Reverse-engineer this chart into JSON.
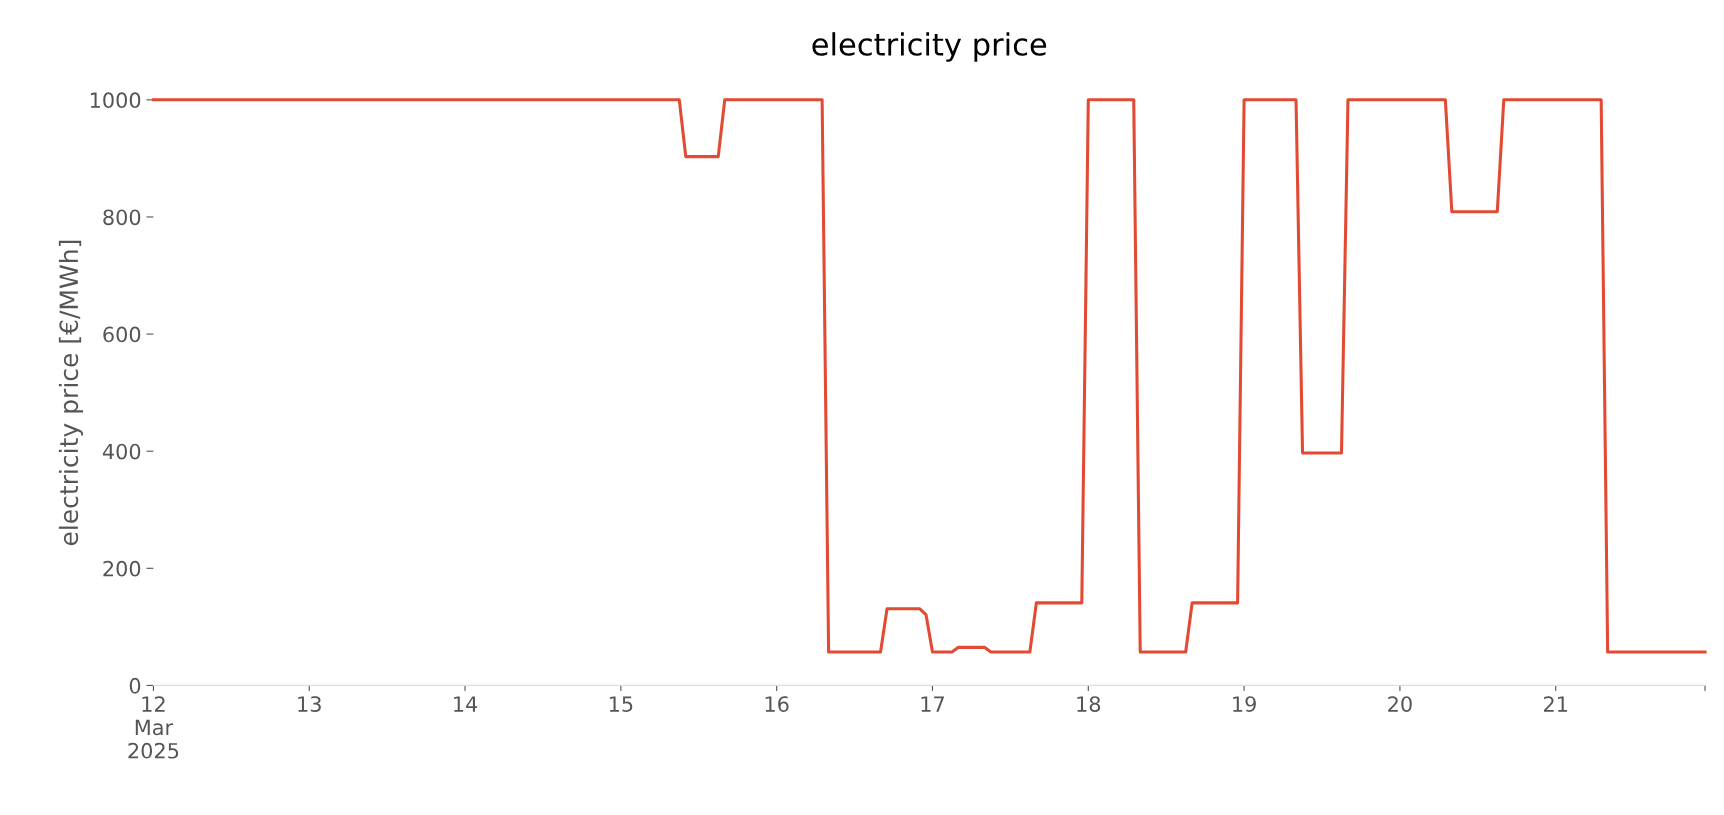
{
  "chart_data": {
    "type": "line",
    "title": "electricity price",
    "ylabel": "electricity price [€/MWh]",
    "x": [
      "2025-03-12T00:00",
      "2025-03-15T09:00",
      "2025-03-15T10:00",
      "2025-03-15T15:00",
      "2025-03-15T16:00",
      "2025-03-16T07:00",
      "2025-03-16T08:00",
      "2025-03-16T16:00",
      "2025-03-16T17:00",
      "2025-03-16T22:00",
      "2025-03-16T23:00",
      "2025-03-17T00:00",
      "2025-03-17T03:00",
      "2025-03-17T04:00",
      "2025-03-17T08:00",
      "2025-03-17T09:00",
      "2025-03-17T15:00",
      "2025-03-17T16:00",
      "2025-03-17T23:00",
      "2025-03-18T00:00",
      "2025-03-18T07:00",
      "2025-03-18T08:00",
      "2025-03-18T15:00",
      "2025-03-18T16:00",
      "2025-03-18T23:00",
      "2025-03-19T00:00",
      "2025-03-19T08:00",
      "2025-03-19T09:00",
      "2025-03-19T15:00",
      "2025-03-19T16:00",
      "2025-03-20T07:00",
      "2025-03-20T08:00",
      "2025-03-20T15:00",
      "2025-03-20T16:00",
      "2025-03-21T07:00",
      "2025-03-21T08:00",
      "2025-03-21T23:00"
    ],
    "values": [
      1000,
      1000,
      903,
      903,
      1000,
      1000,
      57,
      57,
      131,
      131,
      121,
      57,
      57,
      65,
      65,
      57,
      57,
      141,
      141,
      1000,
      1000,
      57,
      57,
      141,
      141,
      1000,
      1000,
      397,
      397,
      1000,
      1000,
      809,
      809,
      1000,
      1000,
      57,
      57
    ],
    "color": "#e24a33",
    "xlim": [
      "2025-03-12T00:00",
      "2025-03-21T23:00"
    ],
    "xticks": [
      {
        "value": "2025-03-12",
        "label": "12\nMar\n2025"
      },
      {
        "value": "2025-03-13",
        "label": "13"
      },
      {
        "value": "2025-03-14",
        "label": "14"
      },
      {
        "value": "2025-03-15",
        "label": "15"
      },
      {
        "value": "2025-03-16",
        "label": "16"
      },
      {
        "value": "2025-03-17",
        "label": "17"
      },
      {
        "value": "2025-03-18",
        "label": "18"
      },
      {
        "value": "2025-03-19",
        "label": "19"
      },
      {
        "value": "2025-03-20",
        "label": "20"
      },
      {
        "value": "2025-03-21",
        "label": "21"
      },
      {
        "value": "2025-03-21T23:00",
        "label": null
      }
    ],
    "ylim": [
      0,
      1000
    ],
    "yticks": [
      0,
      200,
      400,
      600,
      800,
      1000
    ],
    "grid": false,
    "line_style": "solid",
    "marker": "none"
  }
}
